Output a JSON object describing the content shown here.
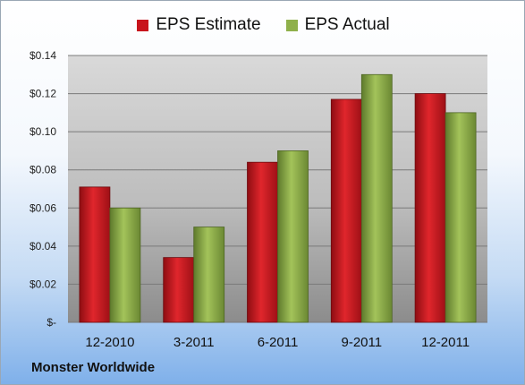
{
  "chart_data": {
    "type": "bar",
    "categories": [
      "12-2010",
      "3-2011",
      "6-2011",
      "9-2011",
      "12-2011"
    ],
    "series": [
      {
        "name": "EPS Estimate",
        "values": [
          0.071,
          0.034,
          0.084,
          0.117,
          0.12
        ],
        "color": "#c8141c"
      },
      {
        "name": "EPS Actual",
        "values": [
          0.06,
          0.05,
          0.09,
          0.13,
          0.11
        ],
        "color": "#8fb04a"
      }
    ],
    "yticks": [
      {
        "value": 0,
        "label": "$-"
      },
      {
        "value": 0.02,
        "label": "$0.02"
      },
      {
        "value": 0.04,
        "label": "$0.04"
      },
      {
        "value": 0.06,
        "label": "$0.06"
      },
      {
        "value": 0.08,
        "label": "$0.08"
      },
      {
        "value": 0.1,
        "label": "$0.10"
      },
      {
        "value": 0.12,
        "label": "$0.12"
      },
      {
        "value": 0.14,
        "label": "$0.14"
      }
    ],
    "ylim": [
      0,
      0.14
    ],
    "grid": true,
    "legend_position": "top-center"
  },
  "footer": {
    "company": "Monster Worldwide"
  }
}
